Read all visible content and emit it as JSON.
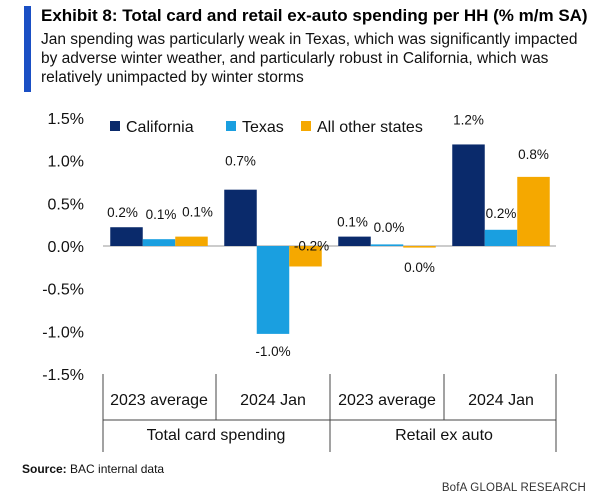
{
  "header": {
    "title": "Exhibit 8: Total card and retail ex-auto spending per HH (% m/m SA)",
    "subtitle": "Jan spending was particularly weak in Texas, which was significantly impacted by adverse winter weather, and particularly robust in California, which was relatively unimpacted by winter storms"
  },
  "footer": {
    "source_label": "Source:",
    "source_text": "BAC internal data",
    "brand": "BofA GLOBAL RESEARCH"
  },
  "chart_data": {
    "type": "bar",
    "groups": [
      {
        "name": "Total card spending",
        "categories": [
          "2023 average",
          "2024 Jan"
        ]
      },
      {
        "name": "Retail ex auto",
        "categories": [
          "2023 average",
          "2024 Jan"
        ]
      }
    ],
    "categories": [
      "2023 average",
      "2024 Jan",
      "2023 average",
      "2024 Jan"
    ],
    "series": [
      {
        "name": "California",
        "color": "#0a2a6b",
        "values": [
          0.22,
          0.66,
          0.11,
          1.19
        ],
        "labels": [
          "0.2%",
          "0.7%",
          "0.1%",
          "1.2%"
        ]
      },
      {
        "name": "Texas",
        "color": "#1a9fe0",
        "values": [
          0.08,
          -1.03,
          0.0,
          0.19
        ],
        "labels": [
          "0.1%",
          "-1.0%",
          "0.0%",
          "0.2%"
        ]
      },
      {
        "name": "All other states",
        "color": "#f5a800",
        "values": [
          0.11,
          -0.24,
          -0.01,
          0.81
        ],
        "labels": [
          "0.1%",
          "-0.2%",
          "0.0%",
          "0.8%"
        ]
      }
    ],
    "yticks": [
      "1.5%",
      "1.0%",
      "0.5%",
      "0.0%",
      "-0.5%",
      "-1.0%",
      "-1.5%"
    ],
    "ytick_values": [
      1.5,
      1.0,
      0.5,
      0.0,
      -0.5,
      -1.0,
      -1.5
    ],
    "ylim": [
      -1.5,
      1.5
    ],
    "legend_position": "top",
    "grid": false
  }
}
